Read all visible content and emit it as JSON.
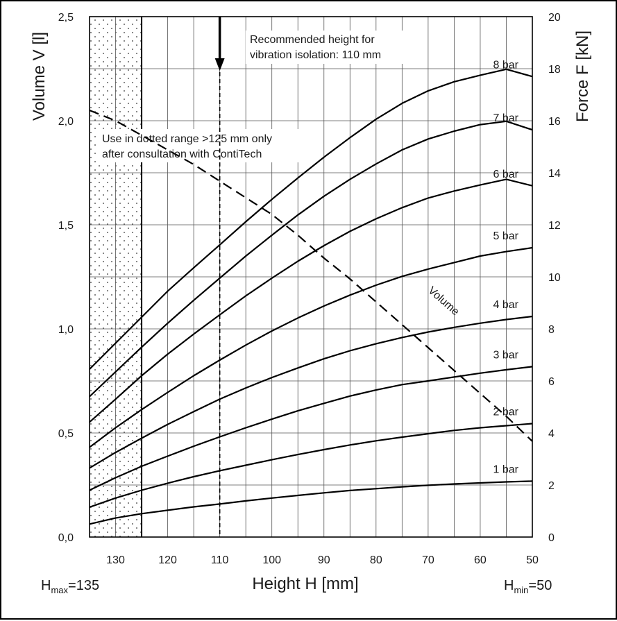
{
  "chart_data": {
    "type": "line",
    "xlabel": "Height H [mm]",
    "ylabel_left": "Volume V [l]",
    "ylabel_right": "Force F [kN]",
    "x_reversed": true,
    "xlim": [
      135,
      50
    ],
    "ylim_left": [
      0,
      2.5
    ],
    "ylim_right": [
      0,
      20
    ],
    "grid": true,
    "x_ticks": [
      130,
      120,
      110,
      100,
      90,
      80,
      70,
      60,
      50
    ],
    "y_ticks_left": [
      "0,0",
      "0,5",
      "1,0",
      "1,5",
      "2,0",
      "2,5"
    ],
    "y_ticks_right": [
      "0",
      "2",
      "4",
      "6",
      "8",
      "10",
      "12",
      "14",
      "16",
      "18",
      "20"
    ],
    "x": [
      135,
      130,
      125,
      120,
      115,
      110,
      105,
      100,
      95,
      90,
      85,
      80,
      75,
      70,
      65,
      60,
      55,
      50
    ],
    "series": [
      {
        "name": "1 bar",
        "axis": "force",
        "values": [
          0.5,
          0.73,
          0.9,
          1.03,
          1.16,
          1.27,
          1.39,
          1.5,
          1.6,
          1.7,
          1.79,
          1.86,
          1.93,
          1.99,
          2.04,
          2.08,
          2.12,
          2.15
        ]
      },
      {
        "name": "2 bar",
        "axis": "force",
        "values": [
          1.15,
          1.5,
          1.8,
          2.07,
          2.32,
          2.55,
          2.76,
          2.97,
          3.17,
          3.36,
          3.54,
          3.7,
          3.84,
          3.97,
          4.1,
          4.2,
          4.28,
          4.36
        ]
      },
      {
        "name": "3 bar",
        "axis": "force",
        "values": [
          1.8,
          2.28,
          2.72,
          3.11,
          3.49,
          3.85,
          4.2,
          4.53,
          4.85,
          5.14,
          5.42,
          5.65,
          5.86,
          6.0,
          6.15,
          6.3,
          6.43,
          6.55
        ]
      },
      {
        "name": "4 bar",
        "axis": "force",
        "values": [
          2.65,
          3.25,
          3.8,
          4.33,
          4.82,
          5.3,
          5.73,
          6.13,
          6.5,
          6.85,
          7.16,
          7.43,
          7.67,
          7.88,
          8.06,
          8.22,
          8.36,
          8.48
        ]
      },
      {
        "name": "5 bar",
        "axis": "force",
        "values": [
          3.45,
          4.2,
          4.9,
          5.56,
          6.2,
          6.8,
          7.38,
          7.92,
          8.42,
          8.88,
          9.3,
          9.68,
          10.02,
          10.3,
          10.55,
          10.8,
          10.97,
          11.12
        ]
      },
      {
        "name": "6 bar",
        "axis": "force",
        "values": [
          4.42,
          5.3,
          6.2,
          7.03,
          7.8,
          8.54,
          9.27,
          9.95,
          10.6,
          11.2,
          11.75,
          12.23,
          12.66,
          13.03,
          13.3,
          13.53,
          13.75,
          13.5
        ]
      },
      {
        "name": "7 bar",
        "axis": "force",
        "values": [
          5.4,
          6.35,
          7.3,
          8.22,
          9.1,
          9.95,
          10.8,
          11.6,
          12.38,
          13.1,
          13.75,
          14.34,
          14.88,
          15.3,
          15.6,
          15.85,
          15.98,
          15.65
        ]
      },
      {
        "name": "8 bar",
        "axis": "force",
        "values": [
          6.45,
          7.45,
          8.45,
          9.45,
          10.35,
          11.23,
          12.12,
          12.98,
          13.8,
          14.6,
          15.35,
          16.06,
          16.67,
          17.15,
          17.5,
          17.75,
          17.98,
          17.7
        ]
      },
      {
        "name": "Volume",
        "axis": "volume",
        "style": "dashed",
        "values": [
          2.05,
          2.0,
          1.93,
          1.86,
          1.79,
          1.71,
          1.63,
          1.55,
          1.45,
          1.34,
          1.24,
          1.13,
          1.02,
          0.91,
          0.8,
          0.69,
          0.58,
          0.46
        ]
      }
    ],
    "annotations": {
      "recommended_height_line1": "Recommended height for",
      "recommended_height_line2": "vibration isolation: 110 mm",
      "recommended_height_value": 110,
      "dotted_range_line1": "Use in dotted range >125 mm only",
      "dotted_range_line2": "after consultation with ContiTech",
      "dotted_range_from": 135,
      "dotted_range_to": 125,
      "h_max_label": "H",
      "h_max_sub": "max",
      "h_max_value": "=135",
      "h_min_label": "H",
      "h_min_sub": "min",
      "h_min_value": "=50"
    }
  }
}
